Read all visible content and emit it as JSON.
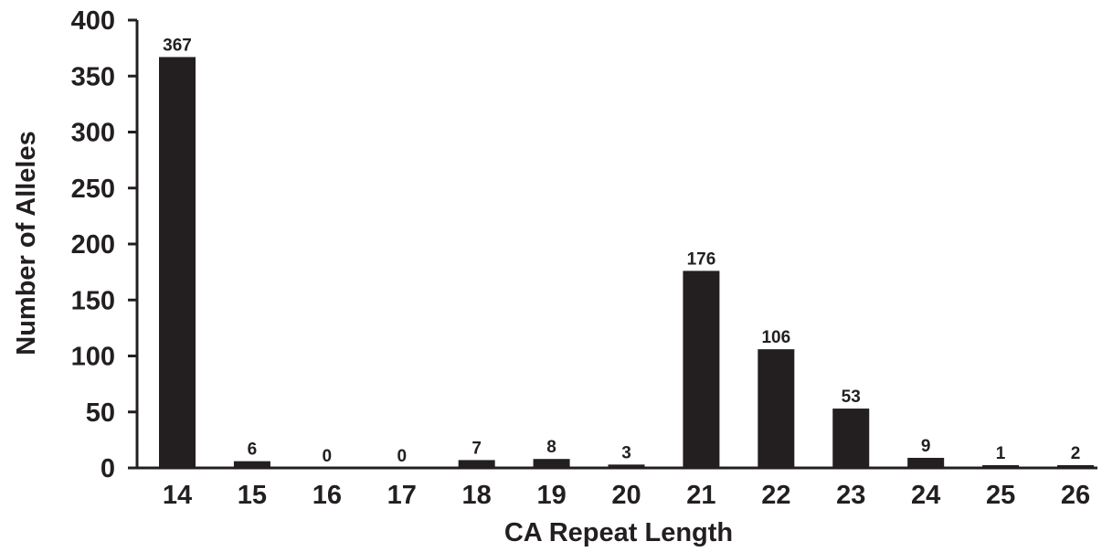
{
  "chart_data": {
    "type": "bar",
    "title": "",
    "xlabel": "CA Repeat Length",
    "ylabel": "Number of Alleles",
    "categories": [
      "14",
      "15",
      "16",
      "17",
      "18",
      "19",
      "20",
      "21",
      "22",
      "23",
      "24",
      "25",
      "26"
    ],
    "values": [
      367,
      6,
      0,
      0,
      7,
      8,
      3,
      176,
      106,
      53,
      9,
      1,
      2
    ],
    "data_labels": [
      "367",
      "6",
      "0",
      "0",
      "7",
      "8",
      "3",
      "176",
      "106",
      "53",
      "9",
      "1",
      "2"
    ],
    "yticks": [
      "0",
      "50",
      "100",
      "150",
      "200",
      "250",
      "300",
      "350",
      "400"
    ],
    "ylim": [
      0,
      400
    ],
    "grid": false,
    "legend": "none",
    "bar_color": "#231f20"
  }
}
